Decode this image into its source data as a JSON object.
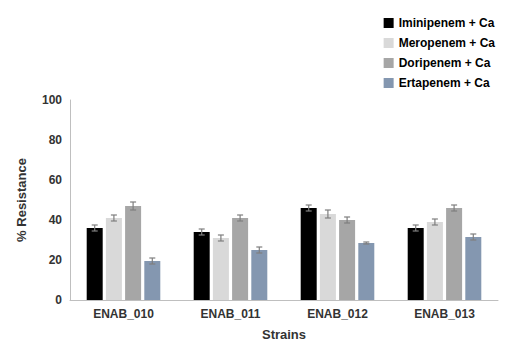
{
  "chart_data": {
    "type": "bar",
    "x_label": "Strains",
    "y_label": "% Resistance",
    "categories": [
      "ENAB_010",
      "ENAB_011",
      "ENAB_012",
      "ENAB_013"
    ],
    "series": [
      {
        "name": "Iminipenem + Ca",
        "color": "#000000",
        "values": [
          36,
          34,
          46,
          36
        ],
        "errors": [
          1.5,
          1.5,
          1.5,
          1.5
        ]
      },
      {
        "name": "Meropenem + Ca",
        "color": "#d9d9d9",
        "values": [
          41,
          31,
          43,
          39
        ],
        "errors": [
          1.5,
          1.5,
          2,
          1.5
        ]
      },
      {
        "name": "Doripenem + Ca",
        "color": "#a6a6a6",
        "values": [
          47,
          41,
          40,
          46
        ],
        "errors": [
          2,
          1.5,
          1.5,
          1.5
        ]
      },
      {
        "name": "Ertapenem + Ca",
        "color": "#8497b0",
        "values": [
          19.5,
          25,
          28.5,
          31.5
        ],
        "errors": [
          1.5,
          1.5,
          0.5,
          1.5
        ]
      }
    ],
    "ylim": [
      0,
      100
    ],
    "yticks": [
      0,
      20,
      40,
      60,
      80,
      100
    ],
    "grid": false,
    "legend": "top-right"
  }
}
